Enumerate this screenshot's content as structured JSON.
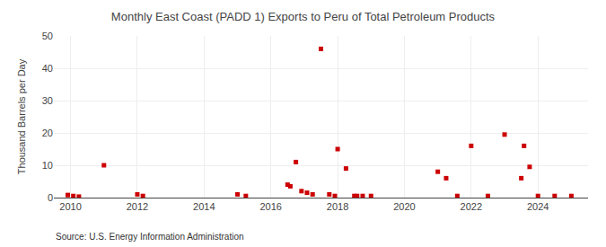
{
  "chart_data": {
    "type": "scatter",
    "title": "Monthly East Coast (PADD 1) Exports to Peru of Total Petroleum Products",
    "ylabel": "Thousand Barrels per Day",
    "annotations": [
      "Source: U.S. Energy Information Administration"
    ],
    "x": [
      2009.917,
      2010.083,
      2010.25,
      2011.0,
      2012.0,
      2012.167,
      2015.0,
      2015.25,
      2016.5,
      2016.583,
      2016.75,
      2016.917,
      2017.083,
      2017.25,
      2017.5,
      2017.75,
      2017.917,
      2018.0,
      2018.25,
      2018.5,
      2018.583,
      2018.75,
      2019.0,
      2021.0,
      2021.25,
      2021.583,
      2022.0,
      2022.5,
      2023.0,
      2023.5,
      2023.583,
      2023.75,
      2024.0,
      2024.5,
      2025.0
    ],
    "values": [
      0.8,
      0.5,
      0.3,
      10.0,
      1.0,
      0.5,
      1.0,
      0.5,
      4.0,
      3.5,
      11.0,
      2.0,
      1.5,
      1.0,
      46.0,
      1.0,
      0.5,
      15.0,
      9.0,
      0.5,
      0.5,
      0.5,
      0.5,
      8.0,
      6.0,
      0.5,
      16.0,
      0.5,
      19.5,
      6.0,
      16.0,
      9.5,
      0.5,
      0.5,
      0.5
    ],
    "color": "#cc0000",
    "marker": "square",
    "xlim": [
      2009.5,
      2025.5
    ],
    "xticks": [
      2010,
      2012,
      2014,
      2016,
      2018,
      2020,
      2022,
      2024
    ],
    "ylim": [
      0,
      50
    ],
    "yticks": [
      0,
      10,
      20,
      30,
      40,
      50
    ],
    "grid": true
  }
}
